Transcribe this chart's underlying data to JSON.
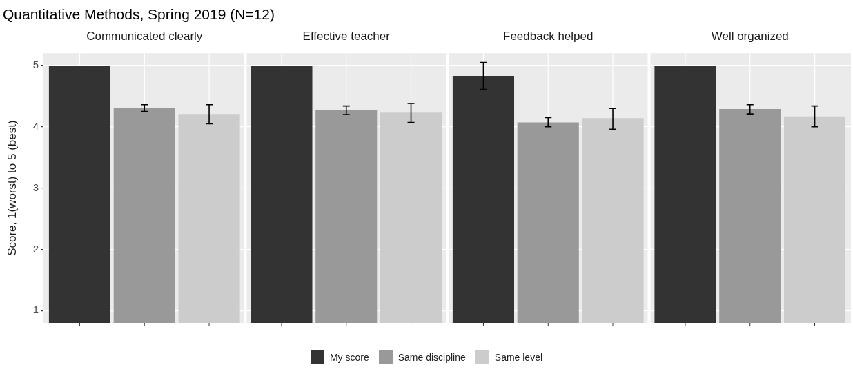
{
  "chart_data": {
    "type": "bar",
    "title": "Quantitative Methods, Spring 2019 (N=12)",
    "ylabel": "Score, 1(worst) to 5 (best)",
    "categories": [
      "Communicated clearly",
      "Effective teacher",
      "Feedback helped",
      "Well organized"
    ],
    "ylim": [
      0.8,
      5.2
    ],
    "yticks": [
      1,
      2,
      3,
      4,
      5
    ],
    "grid": true,
    "legend": "bottom",
    "series": [
      {
        "name": "My score",
        "color": "#333333",
        "values": [
          5.0,
          5.0,
          4.83,
          5.0
        ],
        "errors": [
          null,
          null,
          [
            4.61,
            5.05
          ],
          null
        ]
      },
      {
        "name": "Same discipline",
        "color": "#999999",
        "values": [
          4.31,
          4.27,
          4.07,
          4.29
        ],
        "errors": [
          [
            4.25,
            4.36
          ],
          [
            4.2,
            4.34
          ],
          [
            4.0,
            4.15
          ],
          [
            4.21,
            4.36
          ]
        ]
      },
      {
        "name": "Same level",
        "color": "#cccccc",
        "values": [
          4.21,
          4.23,
          4.14,
          4.17
        ],
        "errors": [
          [
            4.05,
            4.36
          ],
          [
            4.07,
            4.38
          ],
          [
            3.96,
            4.3
          ],
          [
            4.0,
            4.34
          ]
        ]
      }
    ]
  }
}
